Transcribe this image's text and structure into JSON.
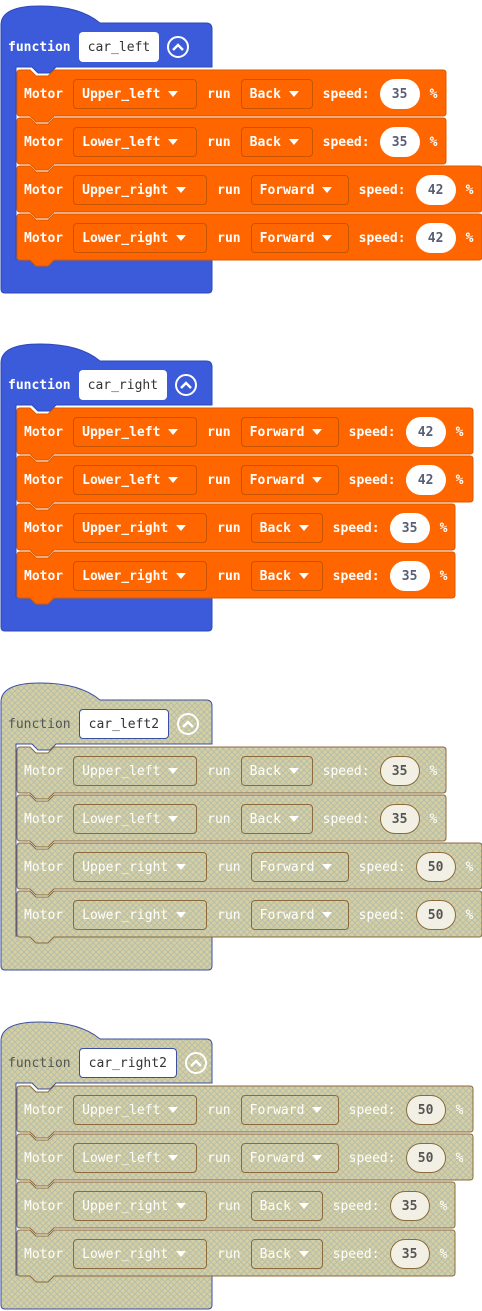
{
  "blocks": [
    {
      "keyword": "function",
      "name": "car_left",
      "disabled": false,
      "rows": [
        {
          "motor_label": "Motor",
          "motor": "Upper_left",
          "run_label": "run",
          "direction": "Back",
          "speed_label": "speed:",
          "speed": "35",
          "unit": "%"
        },
        {
          "motor_label": "Motor",
          "motor": "Lower_left",
          "run_label": "run",
          "direction": "Back",
          "speed_label": "speed:",
          "speed": "35",
          "unit": "%"
        },
        {
          "motor_label": "Motor",
          "motor": "Upper_right",
          "run_label": "run",
          "direction": "Forward",
          "speed_label": "speed:",
          "speed": "42",
          "unit": "%"
        },
        {
          "motor_label": "Motor",
          "motor": "Lower_right",
          "run_label": "run",
          "direction": "Forward",
          "speed_label": "speed:",
          "speed": "42",
          "unit": "%"
        }
      ]
    },
    {
      "keyword": "function",
      "name": "car_right",
      "disabled": false,
      "rows": [
        {
          "motor_label": "Motor",
          "motor": "Upper_left",
          "run_label": "run",
          "direction": "Forward",
          "speed_label": "speed:",
          "speed": "42",
          "unit": "%"
        },
        {
          "motor_label": "Motor",
          "motor": "Lower_left",
          "run_label": "run",
          "direction": "Forward",
          "speed_label": "speed:",
          "speed": "42",
          "unit": "%"
        },
        {
          "motor_label": "Motor",
          "motor": "Upper_right",
          "run_label": "run",
          "direction": "Back",
          "speed_label": "speed:",
          "speed": "35",
          "unit": "%"
        },
        {
          "motor_label": "Motor",
          "motor": "Lower_right",
          "run_label": "run",
          "direction": "Back",
          "speed_label": "speed:",
          "speed": "35",
          "unit": "%"
        }
      ]
    },
    {
      "keyword": "function",
      "name": "car_left2",
      "disabled": true,
      "rows": [
        {
          "motor_label": "Motor",
          "motor": "Upper_left",
          "run_label": "run",
          "direction": "Back",
          "speed_label": "speed:",
          "speed": "35",
          "unit": "%"
        },
        {
          "motor_label": "Motor",
          "motor": "Lower_left",
          "run_label": "run",
          "direction": "Back",
          "speed_label": "speed:",
          "speed": "35",
          "unit": "%"
        },
        {
          "motor_label": "Motor",
          "motor": "Upper_right",
          "run_label": "run",
          "direction": "Forward",
          "speed_label": "speed:",
          "speed": "50",
          "unit": "%"
        },
        {
          "motor_label": "Motor",
          "motor": "Lower_right",
          "run_label": "run",
          "direction": "Forward",
          "speed_label": "speed:",
          "speed": "50",
          "unit": "%"
        }
      ]
    },
    {
      "keyword": "function",
      "name": "car_right2",
      "disabled": true,
      "rows": [
        {
          "motor_label": "Motor",
          "motor": "Upper_left",
          "run_label": "run",
          "direction": "Forward",
          "speed_label": "speed:",
          "speed": "50",
          "unit": "%"
        },
        {
          "motor_label": "Motor",
          "motor": "Lower_left",
          "run_label": "run",
          "direction": "Forward",
          "speed_label": "speed:",
          "speed": "50",
          "unit": "%"
        },
        {
          "motor_label": "Motor",
          "motor": "Upper_right",
          "run_label": "run",
          "direction": "Back",
          "speed_label": "speed:",
          "speed": "35",
          "unit": "%"
        },
        {
          "motor_label": "Motor",
          "motor": "Lower_right",
          "run_label": "run",
          "direction": "Back",
          "speed_label": "speed:",
          "speed": "35",
          "unit": "%"
        }
      ]
    }
  ],
  "colors": {
    "function_block": "#3b5bdb",
    "motor_block": "#ff6600",
    "disabled_fill": "#d6d0a6",
    "disabled_hatch": "#b9c2b8"
  },
  "icons": {
    "collapse": "chevron-up-circle-icon",
    "dropdown": "caret-down-icon"
  }
}
